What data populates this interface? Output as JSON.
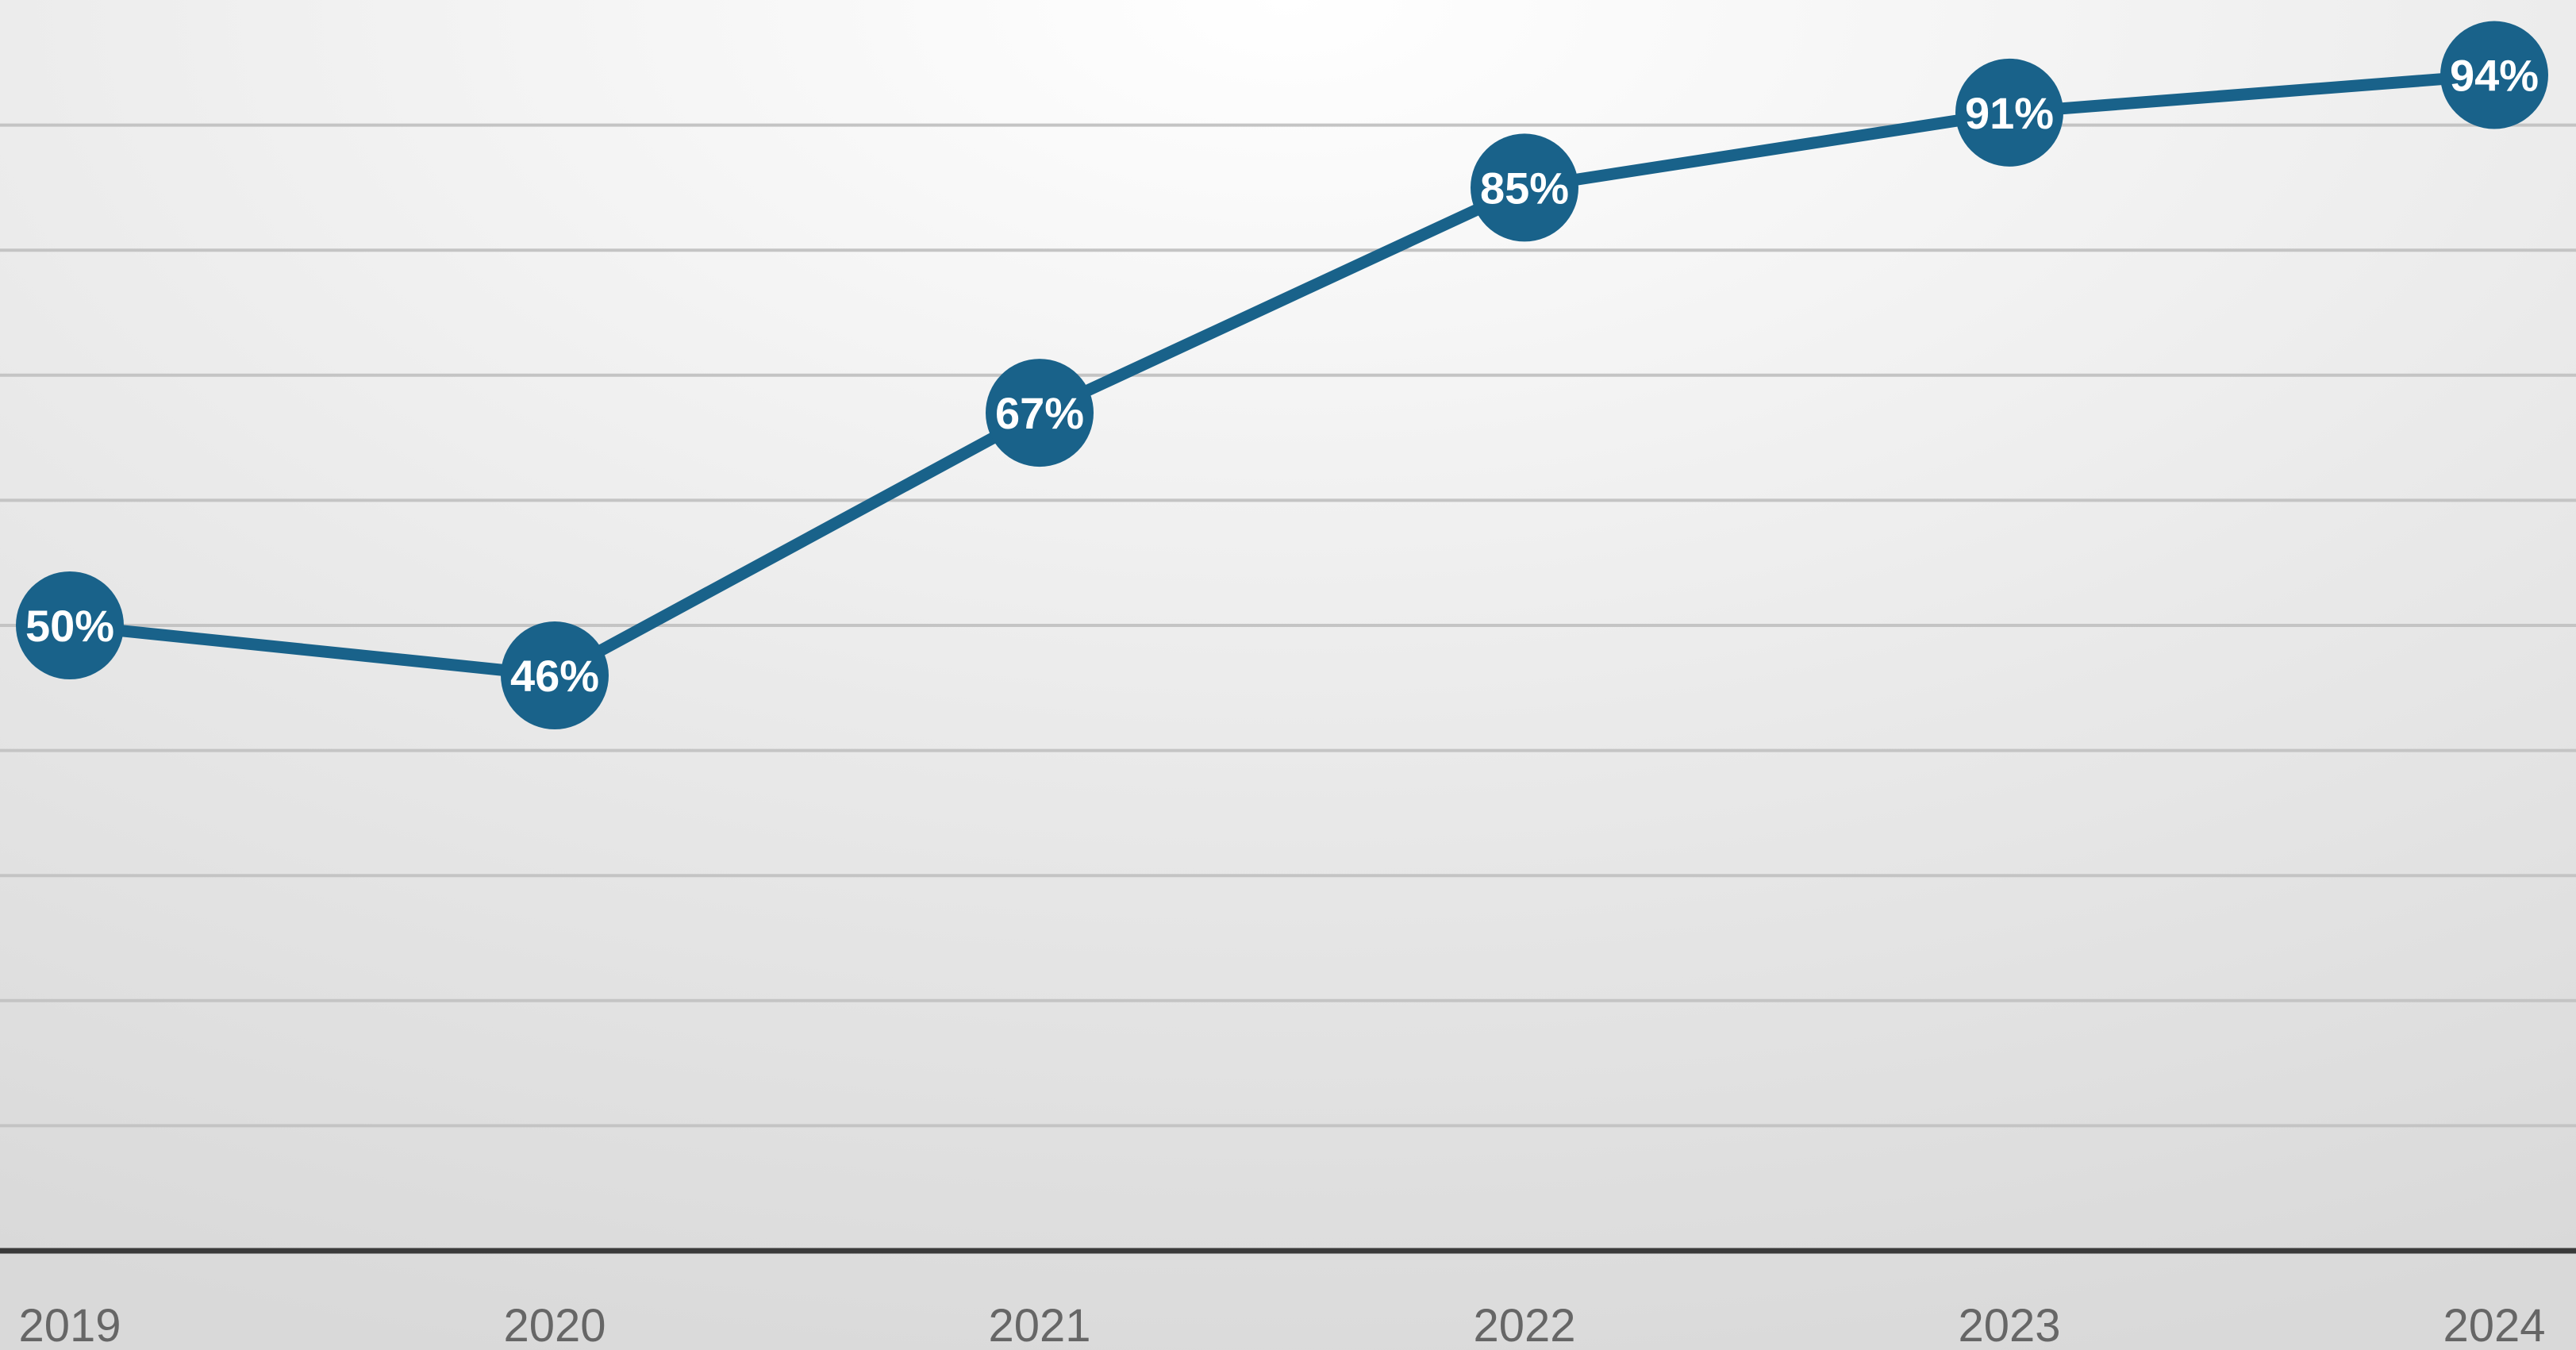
{
  "chart_data": {
    "type": "line",
    "title": "",
    "xlabel": "",
    "ylabel": "",
    "categories": [
      "2019",
      "2020",
      "2021",
      "2022",
      "2023",
      "2024"
    ],
    "series": [
      {
        "values": [
          50,
          46,
          67,
          85,
          91,
          94
        ],
        "labels": [
          "50%",
          "46%",
          "67%",
          "85%",
          "91%",
          "94%"
        ],
        "color": "#19628a"
      }
    ],
    "ylim": [
      0,
      100
    ],
    "gridline_step": 10,
    "grid": true,
    "y_tick_labels_visible": false,
    "legend": "none",
    "colors": {
      "line": "#19628a",
      "marker": "#19628a",
      "label_text": "#ffffff",
      "gridline": "#c4c4c4",
      "baseline": "#3a3a3a",
      "tick_label": "#666666"
    }
  }
}
